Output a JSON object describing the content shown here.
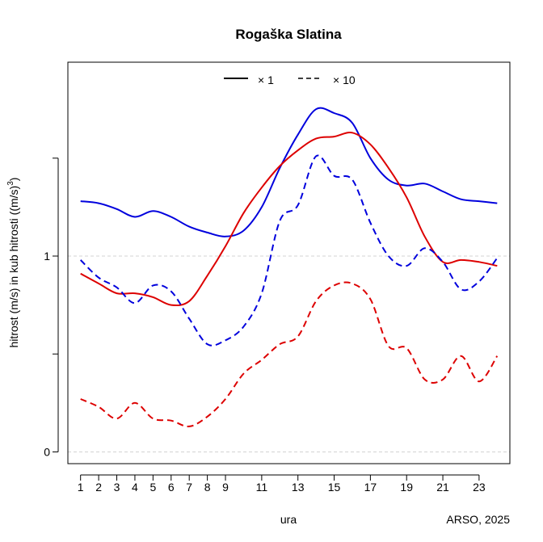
{
  "chart_data": {
    "type": "line",
    "title": "Rogaška Slatina",
    "xlabel": "ura",
    "ylabel": "hitrost (m/s) in kub hitrosti ((m/s)^3)",
    "ylabel_parts": {
      "main": "hitrost (m/s) in kub hitrosti ((m/s)",
      "sup": "3",
      "close": ")"
    },
    "credit": "ARSO, 2025",
    "xlim": [
      0.3,
      24.7
    ],
    "ylim": [
      -0.06,
      1.99
    ],
    "x_ticks": [
      1,
      2,
      3,
      4,
      5,
      6,
      7,
      8,
      9,
      11,
      13,
      15,
      17,
      19,
      21,
      23
    ],
    "y_ticks": [
      0,
      0.5,
      1,
      1.5
    ],
    "y_tick_labels": [
      "0",
      "",
      "1",
      ""
    ],
    "gridlines_y": [
      0,
      1
    ],
    "legend": {
      "placement": "top",
      "entries": [
        {
          "label": "× 1",
          "linestyle": "solid"
        },
        {
          "label": "×  10",
          "linestyle": "dashed"
        }
      ]
    },
    "x": [
      1,
      2,
      3,
      4,
      5,
      6,
      7,
      8,
      9,
      10,
      11,
      12,
      13,
      14,
      15,
      16,
      17,
      18,
      19,
      20,
      21,
      22,
      23,
      24
    ],
    "series": [
      {
        "color": "#0000dd",
        "linestyle": "solid",
        "multiplier": 1,
        "values": [
          1.28,
          1.27,
          1.24,
          1.2,
          1.23,
          1.2,
          1.15,
          1.12,
          1.1,
          1.13,
          1.25,
          1.45,
          1.62,
          1.75,
          1.73,
          1.68,
          1.5,
          1.39,
          1.36,
          1.37,
          1.33,
          1.29,
          1.28,
          1.27
        ]
      },
      {
        "color": "#dd0000",
        "linestyle": "solid",
        "multiplier": 1,
        "values": [
          0.91,
          0.86,
          0.81,
          0.81,
          0.79,
          0.75,
          0.77,
          0.9,
          1.05,
          1.22,
          1.35,
          1.46,
          1.54,
          1.6,
          1.61,
          1.63,
          1.57,
          1.45,
          1.3,
          1.1,
          0.97,
          0.98,
          0.97,
          0.95
        ]
      },
      {
        "color": "#0000dd",
        "linestyle": "dashed",
        "multiplier": 10,
        "values": [
          0.98,
          0.89,
          0.84,
          0.76,
          0.85,
          0.82,
          0.68,
          0.55,
          0.57,
          0.64,
          0.81,
          1.18,
          1.26,
          1.51,
          1.41,
          1.39,
          1.17,
          1.0,
          0.95,
          1.04,
          0.97,
          0.83,
          0.87,
          0.99
        ]
      },
      {
        "color": "#dd0000",
        "linestyle": "dashed",
        "multiplier": 10,
        "values": [
          0.27,
          0.23,
          0.17,
          0.25,
          0.17,
          0.16,
          0.13,
          0.18,
          0.27,
          0.4,
          0.47,
          0.55,
          0.59,
          0.77,
          0.85,
          0.86,
          0.78,
          0.54,
          0.53,
          0.37,
          0.37,
          0.49,
          0.36,
          0.49
        ]
      }
    ]
  }
}
